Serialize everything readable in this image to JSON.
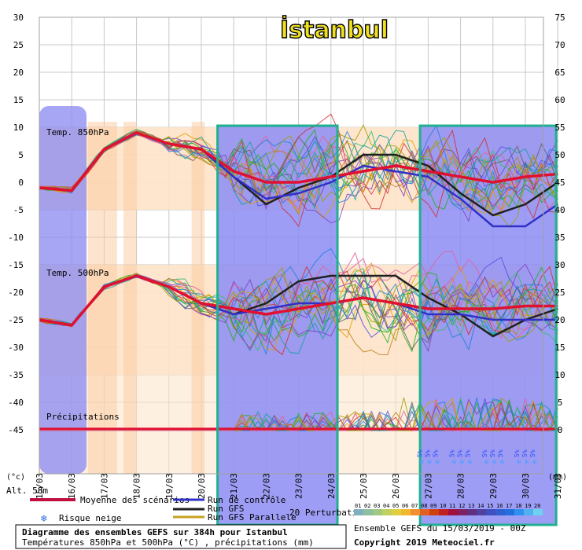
{
  "chart_data": {
    "type": "line",
    "title": "İstanbul",
    "left_axis": {
      "unit": "(°c)",
      "ticks": [
        30,
        25,
        20,
        15,
        10,
        5,
        0,
        -5,
        -10,
        -15,
        -20,
        -25,
        -30,
        -35,
        -40,
        -45
      ],
      "range": [
        -45,
        30
      ]
    },
    "right_axis": {
      "unit": "(mm)",
      "ticks": [
        75,
        70,
        65,
        60,
        55,
        50,
        45,
        40,
        35,
        30,
        25,
        20,
        15,
        10,
        5,
        0
      ],
      "range": [
        0,
        75
      ]
    },
    "x_axis": {
      "ticks": [
        "15/03",
        "16/03",
        "17/03",
        "18/03",
        "19/03",
        "20/03",
        "21/03",
        "22/03",
        "23/03",
        "24/03",
        "25/03",
        "26/03",
        "27/03",
        "28/03",
        "29/03",
        "30/03",
        "31/03"
      ]
    },
    "panel_labels": {
      "t850": "Temp. 850hPa",
      "t500": "Temp. 500hPa",
      "precip": "Précipitations",
      "altitude": "Alt. 58m"
    },
    "snow_risk_marker": "5%",
    "snow_risk_days": [
      27,
      28,
      29,
      30
    ],
    "highlight_day_ranges": [
      [
        20.5,
        24.2
      ],
      [
        26.75,
        30.95
      ]
    ],
    "series": [
      {
        "name": "Moyenne des scénarios",
        "color": "#e01030",
        "t850": [
          [
            15,
            -1
          ],
          [
            16,
            -1.5
          ],
          [
            17,
            6
          ],
          [
            18,
            9
          ],
          [
            19,
            7
          ],
          [
            20,
            6
          ],
          [
            21,
            2
          ],
          [
            22,
            0
          ],
          [
            23,
            0
          ],
          [
            24,
            1
          ],
          [
            25,
            2
          ],
          [
            26,
            3
          ],
          [
            27,
            2
          ],
          [
            28,
            1
          ],
          [
            29,
            0
          ],
          [
            30,
            1
          ],
          [
            31,
            1.5
          ]
        ],
        "t500": [
          [
            15,
            -25
          ],
          [
            16,
            -26
          ],
          [
            17,
            -19
          ],
          [
            18,
            -17
          ],
          [
            19,
            -19
          ],
          [
            20,
            -22
          ],
          [
            21,
            -23
          ],
          [
            22,
            -24
          ],
          [
            23,
            -23
          ],
          [
            24,
            -22
          ],
          [
            25,
            -21
          ],
          [
            26,
            -22
          ],
          [
            27,
            -23
          ],
          [
            28,
            -23
          ],
          [
            29,
            -23
          ],
          [
            30,
            -22.5
          ],
          [
            31,
            -22.5
          ]
        ]
      },
      {
        "name": "Run de contrôle",
        "color": "#3030c8",
        "t850": [
          [
            15,
            -1
          ],
          [
            16,
            -1.5
          ],
          [
            17,
            6
          ],
          [
            18,
            9
          ],
          [
            19,
            7
          ],
          [
            20,
            6
          ],
          [
            21,
            1
          ],
          [
            22,
            -3
          ],
          [
            23,
            -2
          ],
          [
            24,
            0
          ],
          [
            25,
            3
          ],
          [
            26,
            2
          ],
          [
            27,
            1
          ],
          [
            28,
            -3
          ],
          [
            29,
            -8
          ],
          [
            30,
            -8
          ],
          [
            31,
            -4
          ]
        ],
        "t500": [
          [
            15,
            -25
          ],
          [
            16,
            -26
          ],
          [
            17,
            -19
          ],
          [
            18,
            -17
          ],
          [
            19,
            -19
          ],
          [
            20,
            -22
          ],
          [
            21,
            -24
          ],
          [
            22,
            -23
          ],
          [
            23,
            -22
          ],
          [
            24,
            -22
          ],
          [
            25,
            -21
          ],
          [
            26,
            -22
          ],
          [
            27,
            -24
          ],
          [
            28,
            -24
          ],
          [
            29,
            -25
          ],
          [
            30,
            -25
          ],
          [
            31,
            -25
          ]
        ]
      },
      {
        "name": "Run GFS",
        "color": "#202020",
        "t850": [
          [
            15,
            -1
          ],
          [
            16,
            -1.5
          ],
          [
            17,
            6
          ],
          [
            18,
            9
          ],
          [
            19,
            7
          ],
          [
            20,
            6
          ],
          [
            21,
            1
          ],
          [
            22,
            -4
          ],
          [
            23,
            -1
          ],
          [
            24,
            1
          ],
          [
            25,
            5
          ],
          [
            26,
            5
          ],
          [
            27,
            3
          ],
          [
            28,
            -2
          ],
          [
            29,
            -6
          ],
          [
            30,
            -4
          ],
          [
            31,
            0
          ]
        ],
        "t500": [
          [
            15,
            -25
          ],
          [
            16,
            -26
          ],
          [
            17,
            -19
          ],
          [
            18,
            -17
          ],
          [
            19,
            -19
          ],
          [
            20,
            -22
          ],
          [
            21,
            -24
          ],
          [
            22,
            -22
          ],
          [
            23,
            -18
          ],
          [
            24,
            -17
          ],
          [
            25,
            -17
          ],
          [
            26,
            -17
          ],
          [
            27,
            -21
          ],
          [
            28,
            -24
          ],
          [
            29,
            -28
          ],
          [
            30,
            -25
          ],
          [
            31,
            -23
          ]
        ]
      },
      {
        "name": "Run GFS Parallele",
        "color": "#c8a020"
      },
      {
        "name": "20 Perturbations"
      }
    ]
  },
  "legend": {
    "mean": "Moyenne des scénarios",
    "control": "Run de contrôle",
    "gfs": "Run GFS",
    "gfs_parallel": "Run GFS Parallele",
    "perturbations": "20 Perturbations",
    "snow_risk": "Risque neige"
  },
  "precip_scale": {
    "labels": [
      "01",
      "02",
      "03",
      "04",
      "05",
      "06",
      "07",
      "08",
      "09",
      "10",
      "11",
      "12",
      "13",
      "14",
      "15",
      "16",
      "17",
      "18",
      "19",
      "20"
    ],
    "colors": [
      "#7fb0c0",
      "#8cc0a0",
      "#a0c880",
      "#c0d060",
      "#e0d040",
      "#f0b830",
      "#f09030",
      "#e06020",
      "#d04010",
      "#c02020",
      "#a01040",
      "#802060",
      "#603080",
      "#5040a0",
      "#4050c0",
      "#3060d0",
      "#2070e0",
      "#3090f0",
      "#50b0f0",
      "#70d0f0"
    ]
  },
  "footer": {
    "title": "Diagramme des ensembles GEFS sur 384h pour Istanbul",
    "subtitle": "Températures 850hPa et 500hPa (°C) , précipitations (mm)",
    "run": "Ensemble GEFS du 15/03/2019 - 00Z",
    "copyright": "Copyright 2019 Meteociel.fr"
  }
}
